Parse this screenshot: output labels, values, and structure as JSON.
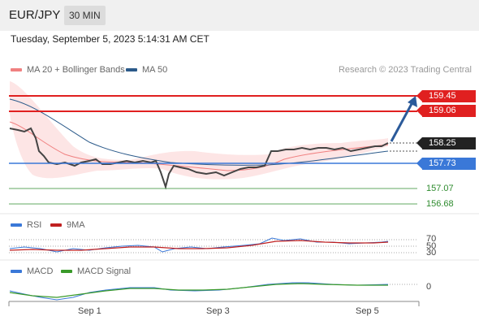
{
  "header": {
    "pair": "EUR/JPY",
    "timeframe": "30 MIN"
  },
  "datetime": "Tuesday, September 5, 2023 5:14:31 AM CET",
  "legend": {
    "item1": "MA 20 + Bollinger Bands",
    "item2": "MA 50"
  },
  "credit": "Research © 2023 Trading Central",
  "colors": {
    "resistance": "#e02020",
    "support": "#3a78d8",
    "target": "#2e8b2e",
    "ma20": "#f08080",
    "ma50": "#2b5a8a",
    "last": "#222222"
  },
  "levels": {
    "r2": "159.45",
    "r1": "159.06",
    "last": "158.25",
    "s1": "157.73",
    "t1": "157.07",
    "t2": "156.68"
  },
  "rsi": {
    "label": "RSI",
    "ma_label": "9MA",
    "levels": [
      "70",
      "50",
      "30"
    ]
  },
  "macd": {
    "label": "MACD",
    "signal_label": "MACD Signal",
    "zero": "0"
  },
  "xaxis": [
    "Sep 1",
    "Sep 3",
    "Sep 5"
  ]
}
